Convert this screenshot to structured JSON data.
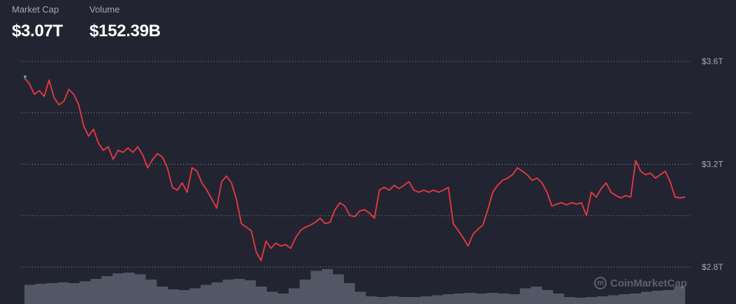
{
  "header": {
    "market_cap_label": "Market Cap",
    "market_cap_value": "$3.07T",
    "volume_label": "Volume",
    "volume_value": "$152.39B"
  },
  "watermark": "CoinMarketCap",
  "colors": {
    "background": "#222531",
    "line": "#ea3943",
    "start_dot": "#16c784",
    "grid": "#a1a7bb",
    "volume": "#5b6070"
  },
  "chart_data": {
    "type": "line",
    "title": "",
    "xlabel": "",
    "ylabel": "",
    "ylim": [
      2.8,
      3.6
    ],
    "y_gridlines": [
      2.8,
      3.0,
      3.2,
      3.4,
      3.6
    ],
    "y_tick_labels": [
      {
        "value": 3.6,
        "label": "$3.6T"
      },
      {
        "value": 3.2,
        "label": "$3.2T"
      },
      {
        "value": 2.8,
        "label": "$2.8T"
      }
    ],
    "grid": true,
    "y_axis_position": "right",
    "market_cap_trillions": [
      3.535,
      3.513,
      3.472,
      3.486,
      3.464,
      3.527,
      3.459,
      3.431,
      3.445,
      3.491,
      3.472,
      3.431,
      3.35,
      3.309,
      3.336,
      3.282,
      3.254,
      3.268,
      3.219,
      3.254,
      3.246,
      3.263,
      3.246,
      3.268,
      3.235,
      3.186,
      3.219,
      3.241,
      3.227,
      3.186,
      3.11,
      3.099,
      3.127,
      3.091,
      3.186,
      3.173,
      3.127,
      3.099,
      3.064,
      3.029,
      3.132,
      3.154,
      3.127,
      3.064,
      2.969,
      2.955,
      2.942,
      2.86,
      2.825,
      2.901,
      2.873,
      2.893,
      2.882,
      2.887,
      2.873,
      2.914,
      2.942,
      2.955,
      2.963,
      2.974,
      2.99,
      2.969,
      2.974,
      3.023,
      3.05,
      3.037,
      3.001,
      2.996,
      3.018,
      3.023,
      3.01,
      2.99,
      3.099,
      3.11,
      3.099,
      3.118,
      3.105,
      3.118,
      3.132,
      3.099,
      3.091,
      3.099,
      3.091,
      3.099,
      3.091,
      3.099,
      3.11,
      2.969,
      2.942,
      2.914,
      2.882,
      2.928,
      2.947,
      2.963,
      3.023,
      3.091,
      3.118,
      3.137,
      3.146,
      3.159,
      3.186,
      3.173,
      3.159,
      3.137,
      3.146,
      3.127,
      3.091,
      3.037,
      3.045,
      3.05,
      3.042,
      3.05,
      3.045,
      3.05,
      3.001,
      3.091,
      3.072,
      3.105,
      3.127,
      3.091,
      3.078,
      3.069,
      3.078,
      3.072,
      3.214,
      3.173,
      3.159,
      3.165,
      3.146,
      3.159,
      3.173,
      3.132,
      3.072,
      3.069,
      3.072
    ],
    "volume_relative": [
      0.55,
      0.58,
      0.6,
      0.62,
      0.6,
      0.65,
      0.72,
      0.8,
      0.88,
      0.9,
      0.85,
      0.7,
      0.5,
      0.42,
      0.4,
      0.45,
      0.55,
      0.62,
      0.7,
      0.72,
      0.68,
      0.5,
      0.35,
      0.3,
      0.45,
      0.7,
      0.95,
      1.0,
      0.85,
      0.6,
      0.35,
      0.22,
      0.2,
      0.22,
      0.2,
      0.2,
      0.22,
      0.25,
      0.28,
      0.3,
      0.32,
      0.3,
      0.32,
      0.3,
      0.28,
      0.45,
      0.5,
      0.4,
      0.3,
      0.2,
      0.18,
      0.2,
      0.22,
      0.25,
      0.28,
      0.3,
      0.35,
      0.38,
      0.4,
      0.5
    ]
  }
}
